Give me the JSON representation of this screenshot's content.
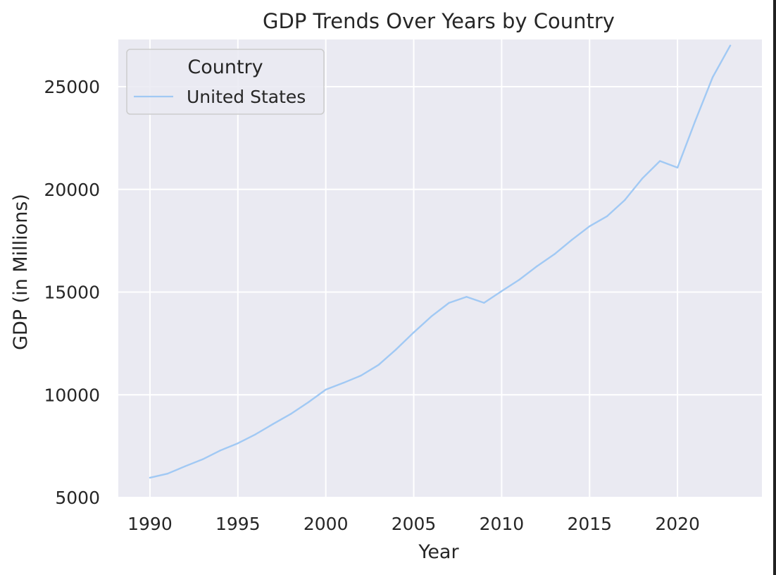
{
  "chart_data": {
    "type": "line",
    "title": "GDP Trends Over Years by Country",
    "xlabel": "Year",
    "ylabel": "GDP (in Millions)",
    "xlim": [
      1988.2,
      2024.8
    ],
    "ylim": [
      5000,
      27300
    ],
    "xticks": [
      1990,
      1995,
      2000,
      2005,
      2010,
      2015,
      2020
    ],
    "yticks": [
      5000,
      10000,
      15000,
      20000,
      25000
    ],
    "grid": true,
    "legend": {
      "title": "Country",
      "position": "top-left"
    },
    "x": [
      1990,
      1991,
      1992,
      1993,
      1994,
      1995,
      1996,
      1997,
      1998,
      1999,
      2000,
      2001,
      2002,
      2003,
      2004,
      2005,
      2006,
      2007,
      2008,
      2009,
      2010,
      2011,
      2012,
      2013,
      2014,
      2015,
      2016,
      2017,
      2018,
      2019,
      2020,
      2021,
      2022,
      2023
    ],
    "series": [
      {
        "name": "United States",
        "color": "#a1c9f4",
        "values": [
          5963,
          6158,
          6520,
          6859,
          7287,
          7639,
          8073,
          8578,
          9062,
          9631,
          10252,
          10582,
          10936,
          11458,
          12213,
          13036,
          13815,
          14474,
          14770,
          14478,
          15049,
          15600,
          16254,
          16843,
          17551,
          18206,
          18695,
          19477,
          20533,
          21381,
          21060,
          23315,
          25463,
          27000
        ]
      }
    ]
  }
}
